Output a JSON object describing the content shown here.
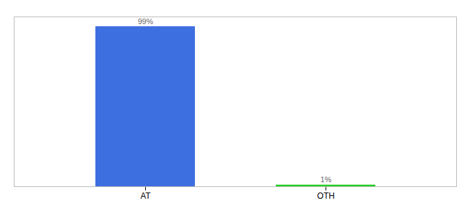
{
  "chart_data": {
    "type": "bar",
    "categories": [
      "AT",
      "OTH"
    ],
    "values": [
      99,
      1
    ],
    "colors": [
      "#3D6FE0",
      "#22CC22"
    ],
    "ylim": [
      0,
      105
    ],
    "yticks": [],
    "tick_labels": "x",
    "data_labels": true,
    "value_labels": [
      "99%",
      "1%"
    ]
  }
}
